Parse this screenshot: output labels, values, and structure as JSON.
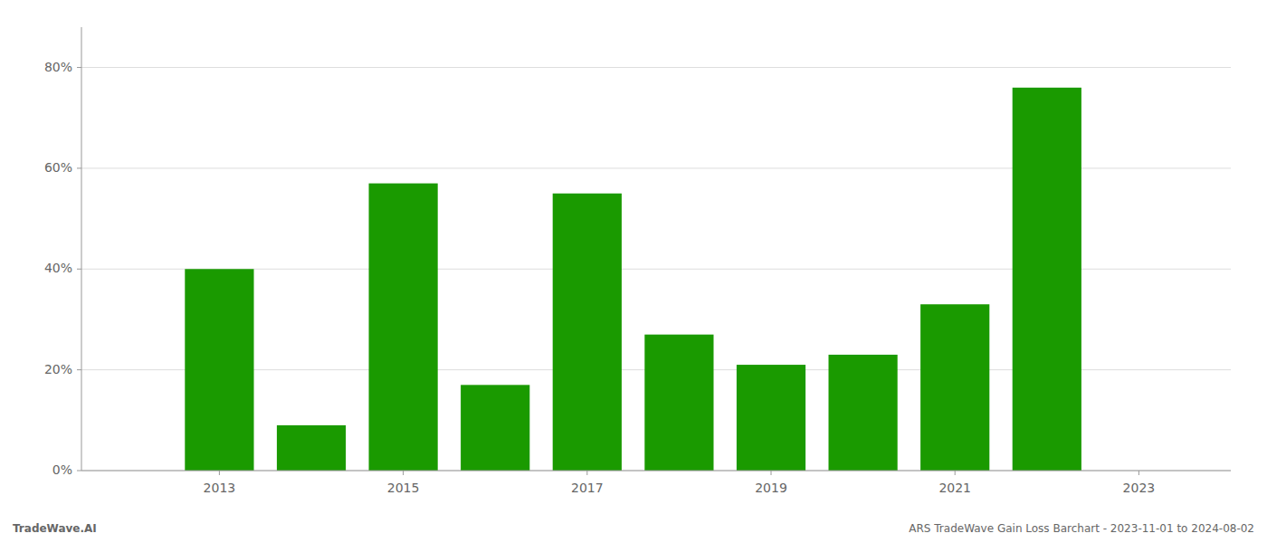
{
  "chart_data": {
    "type": "bar",
    "x": [
      2013,
      2014,
      2015,
      2016,
      2017,
      2018,
      2019,
      2020,
      2021,
      2022
    ],
    "values": [
      0.4,
      0.09,
      0.57,
      0.17,
      0.55,
      0.27,
      0.21,
      0.23,
      0.33,
      0.76
    ],
    "color": "#1a9a00",
    "xlim": [
      2011.5,
      2024.0
    ],
    "xticks": [
      2013,
      2015,
      2017,
      2019,
      2021,
      2023
    ],
    "ylim": [
      0,
      0.88
    ],
    "yticks": [
      {
        "value": 0.0,
        "label": "0%"
      },
      {
        "value": 0.2,
        "label": "20%"
      },
      {
        "value": 0.4,
        "label": "40%"
      },
      {
        "value": 0.6,
        "label": "60%"
      },
      {
        "value": 0.8,
        "label": "80%"
      }
    ],
    "grid": true,
    "annotations": [
      "TradeWave.AI",
      "ARS TradeWave Gain Loss Barchart - 2023-11-01 to 2024-08-02"
    ]
  }
}
